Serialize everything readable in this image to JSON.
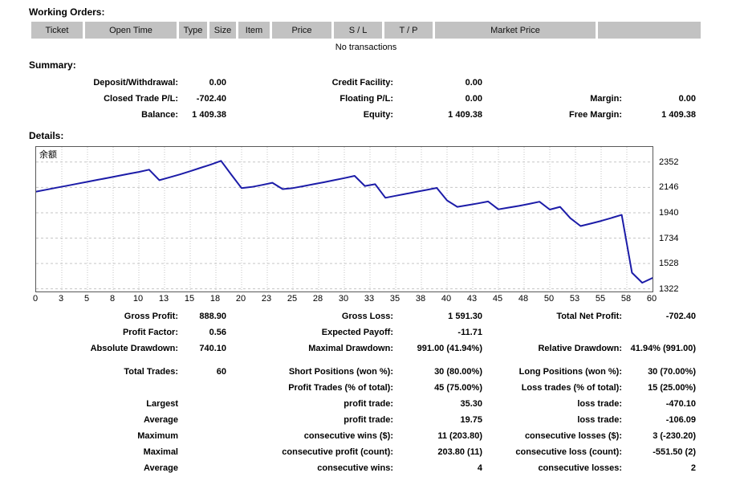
{
  "working_orders": {
    "title": "Working Orders:",
    "columns": [
      "Ticket",
      "Open Time",
      "Type",
      "Size",
      "Item",
      "Price",
      "S / L",
      "T / P",
      "Market Price",
      ""
    ],
    "empty_message": "No transactions"
  },
  "summary": {
    "title": "Summary:",
    "rows": [
      [
        "Deposit/Withdrawal:",
        "0.00",
        "Credit Facility:",
        "0.00",
        "",
        ""
      ],
      [
        "Closed Trade P/L:",
        "-702.40",
        "Floating P/L:",
        "0.00",
        "Margin:",
        "0.00"
      ],
      [
        "Balance:",
        "1 409.38",
        "Equity:",
        "1 409.38",
        "Free Margin:",
        "1 409.38"
      ]
    ]
  },
  "details": {
    "title": "Details:"
  },
  "chart_data": {
    "type": "line",
    "title": "余额",
    "xlabel": "",
    "ylabel": "",
    "grid": true,
    "legend_position": "top-left",
    "line_color": "#1c1ca8",
    "grid_color": "#c6c6c6",
    "xlim": [
      0,
      60
    ],
    "ylim": [
      1300,
      2475
    ],
    "x_tick_labels": [
      "0",
      "3",
      "5",
      "8",
      "10",
      "13",
      "15",
      "18",
      "20",
      "23",
      "25",
      "28",
      "30",
      "33",
      "35",
      "38",
      "40",
      "43",
      "45",
      "48",
      "50",
      "53",
      "55",
      "58",
      "60"
    ],
    "y_ticks": [
      2352,
      2146,
      1940,
      1734,
      1528,
      1322
    ],
    "series": [
      {
        "name": "余额 (Balance)",
        "x": [
          0,
          1,
          2,
          3,
          4,
          5,
          6,
          7,
          8,
          9,
          10,
          11,
          12,
          13,
          14,
          15,
          16,
          17,
          18,
          19,
          20,
          21,
          22,
          23,
          24,
          25,
          26,
          27,
          28,
          29,
          30,
          31,
          32,
          33,
          34,
          35,
          36,
          37,
          38,
          39,
          40,
          41,
          42,
          43,
          44,
          45,
          46,
          47,
          48,
          49,
          50,
          51,
          52,
          53,
          54,
          55,
          56,
          57,
          58,
          59,
          60
        ],
        "values": [
          2112,
          2128,
          2144,
          2160,
          2176,
          2192,
          2208,
          2224,
          2240,
          2256,
          2272,
          2290,
          2205,
          2228,
          2252,
          2278,
          2305,
          2332,
          2362,
          2250,
          2140,
          2150,
          2166,
          2184,
          2132,
          2141,
          2156,
          2172,
          2188,
          2205,
          2222,
          2240,
          2158,
          2172,
          2062,
          2078,
          2094,
          2110,
          2126,
          2142,
          2040,
          1988,
          2002,
          2016,
          2032,
          1968,
          1982,
          1996,
          2012,
          2030,
          1966,
          1988,
          1896,
          1832,
          1852,
          1874,
          1898,
          1923,
          1453,
          1371,
          1409.38
        ]
      }
    ]
  },
  "stats": {
    "blocks": [
      {
        "rows": [
          [
            "Gross Profit:",
            "888.90",
            "Gross Loss:",
            "1 591.30",
            "Total Net Profit:",
            "-702.40"
          ],
          [
            "Profit Factor:",
            "0.56",
            "Expected Payoff:",
            "-11.71",
            "",
            ""
          ],
          [
            "Absolute Drawdown:",
            "740.10",
            "Maximal Drawdown:",
            "991.00 (41.94%)",
            "Relative Drawdown:",
            "41.94% (991.00)"
          ]
        ]
      },
      {
        "rows": [
          [
            "Total Trades:",
            "60",
            "Short Positions (won %):",
            "30 (80.00%)",
            "Long Positions (won %):",
            "30 (70.00%)"
          ],
          [
            "",
            "",
            "Profit Trades (% of total):",
            "45 (75.00%)",
            "Loss trades (% of total):",
            "15 (25.00%)"
          ]
        ]
      },
      {
        "rows": [
          [
            "Largest",
            "",
            "profit trade:",
            "35.30",
            "loss trade:",
            "-470.10"
          ],
          [
            "Average",
            "",
            "profit trade:",
            "19.75",
            "loss trade:",
            "-106.09"
          ],
          [
            "Maximum",
            "",
            "consecutive wins ($):",
            "11 (203.80)",
            "consecutive losses ($):",
            "3 (-230.20)"
          ],
          [
            "Maximal",
            "",
            "consecutive profit (count):",
            "203.80 (11)",
            "consecutive loss (count):",
            "-551.50 (2)"
          ],
          [
            "Average",
            "",
            "consecutive wins:",
            "4",
            "consecutive losses:",
            "2"
          ]
        ]
      }
    ]
  }
}
